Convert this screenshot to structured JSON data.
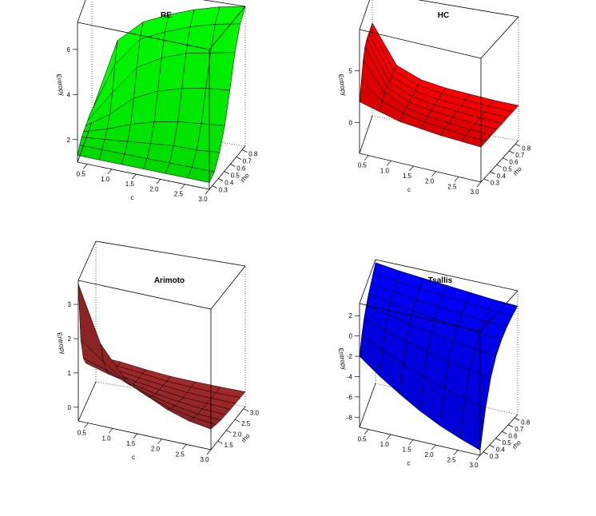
{
  "chart_data": [
    {
      "type": "surface",
      "title": "RE",
      "surface_color": "#00ff00",
      "xlabel": "c",
      "ylabel": "rho",
      "zlabel": "Entropy",
      "x_ticks": [
        "0.5",
        "1.0",
        "1.5",
        "2.0",
        "2.5",
        "3.0"
      ],
      "y_ticks": [
        "0.3",
        "0.4",
        "0.5",
        "0.6",
        "0.7",
        "0.8"
      ],
      "z_ticks": [
        "2",
        "4",
        "6"
      ],
      "xlim": [
        0.3,
        3.0
      ],
      "ylim": [
        0.25,
        0.85
      ],
      "zlim": [
        1,
        7.2
      ],
      "grid": [
        [
          1.3,
          1.5,
          1.6,
          1.6,
          1.6,
          1.6,
          1.6,
          1.5
        ],
        [
          1.3,
          1.5,
          1.7,
          1.9,
          2.3,
          3.0,
          4.0,
          4.8
        ],
        [
          1.3,
          1.5,
          1.8,
          2.3,
          3.2,
          4.3,
          5.3,
          5.8
        ],
        [
          1.3,
          1.5,
          1.9,
          2.6,
          3.7,
          4.9,
          5.8,
          6.3
        ],
        [
          1.3,
          1.5,
          2.0,
          2.8,
          4.0,
          5.3,
          6.2,
          6.7
        ],
        [
          1.3,
          1.5,
          2.0,
          2.9,
          4.2,
          5.5,
          6.5,
          7.0
        ],
        [
          1.3,
          1.5,
          2.1,
          3.0,
          4.3,
          5.7,
          6.7,
          7.2
        ]
      ]
    },
    {
      "type": "surface",
      "title": "HC",
      "surface_color": "#ff0000",
      "xlabel": "c",
      "ylabel": "rho",
      "zlabel": "Entropy",
      "x_ticks": [
        "0.5",
        "1.0",
        "1.5",
        "2.0",
        "2.5",
        "3.0"
      ],
      "y_ticks": [
        "0.3",
        "0.4",
        "0.5",
        "0.6",
        "0.7",
        "0.8"
      ],
      "z_ticks": [
        "0",
        "5"
      ],
      "xlim": [
        0.3,
        3.0
      ],
      "ylim": [
        0.25,
        0.85
      ],
      "zlim": [
        -3,
        9
      ],
      "grid": [
        [
          2.0,
          3.5,
          5.0,
          5.8,
          6.0,
          6.0,
          6.0,
          6.0
        ],
        [
          1.5,
          2.0,
          2.3,
          2.3,
          2.3,
          2.3,
          2.3,
          2.3
        ],
        [
          1.0,
          1.3,
          1.3,
          1.3,
          1.3,
          1.3,
          1.3,
          1.3
        ],
        [
          0.8,
          0.9,
          0.9,
          0.9,
          0.9,
          0.9,
          0.9,
          0.9
        ],
        [
          0.6,
          0.7,
          0.7,
          0.7,
          0.7,
          0.7,
          0.7,
          0.7
        ],
        [
          0.5,
          0.5,
          0.5,
          0.5,
          0.5,
          0.5,
          0.5,
          0.5
        ],
        [
          0.4,
          0.4,
          0.4,
          0.4,
          0.4,
          0.4,
          0.4,
          0.4
        ]
      ]
    },
    {
      "type": "surface",
      "title": "Arimoto",
      "surface_color": "#a52a2a",
      "xlabel": "c",
      "ylabel": "rho",
      "zlabel": "Entropy",
      "x_ticks": [
        "0.5",
        "1.0",
        "1.5",
        "2.0",
        "2.5",
        "3.0"
      ],
      "y_ticks": [
        "1.5",
        "2.0",
        "2.5",
        "3.0"
      ],
      "z_ticks": [
        "0",
        "1",
        "2",
        "3"
      ],
      "xlim": [
        0.3,
        3.0
      ],
      "ylim": [
        1.1,
        3.1
      ],
      "zlim": [
        -0.4,
        3.7
      ],
      "grid": [
        [
          3.6,
          1.8,
          1.1,
          0.8,
          0.6,
          0.5,
          0.4,
          0.35
        ],
        [
          2.0,
          1.3,
          0.9,
          0.6,
          0.5,
          0.4,
          0.35,
          0.3
        ],
        [
          1.2,
          0.85,
          0.6,
          0.45,
          0.35,
          0.3,
          0.25,
          0.2
        ],
        [
          0.8,
          0.55,
          0.4,
          0.3,
          0.25,
          0.2,
          0.15,
          0.12
        ],
        [
          0.5,
          0.35,
          0.25,
          0.2,
          0.15,
          0.12,
          0.1,
          0.08
        ],
        [
          0.3,
          0.22,
          0.15,
          0.12,
          0.1,
          0.08,
          0.06,
          0.05
        ],
        [
          0.2,
          0.15,
          0.1,
          0.08,
          0.06,
          0.05,
          0.04,
          0.03
        ]
      ]
    },
    {
      "type": "surface",
      "title": "Tsallis",
      "surface_color": "#0000ff",
      "xlabel": "c",
      "ylabel": "rho",
      "zlabel": "Entropy",
      "x_ticks": [
        "0.5",
        "1.0",
        "1.5",
        "2.0",
        "2.5",
        "3.0"
      ],
      "y_ticks": [
        "0.3",
        "0.4",
        "0.5",
        "0.6",
        "0.7",
        "0.8"
      ],
      "z_ticks": [
        "-8",
        "-6",
        "-4",
        "-2",
        "0",
        "2"
      ],
      "xlim": [
        0.3,
        3.0
      ],
      "ylim": [
        0.25,
        0.85
      ],
      "zlim": [
        -9,
        3.2
      ],
      "grid": [
        [
          -2.0,
          -0.5,
          0.5,
          1.2,
          1.7,
          2.1,
          2.5,
          2.9
        ],
        [
          -3.5,
          -1.5,
          -0.2,
          0.7,
          1.3,
          1.8,
          2.2,
          2.6
        ],
        [
          -4.8,
          -2.4,
          -0.8,
          0.3,
          1.0,
          1.5,
          2.0,
          2.4
        ],
        [
          -6.0,
          -3.2,
          -1.3,
          -0.1,
          0.7,
          1.3,
          1.8,
          2.2
        ],
        [
          -7.0,
          -3.9,
          -1.8,
          -0.4,
          0.5,
          1.1,
          1.6,
          2.0
        ],
        [
          -7.8,
          -4.5,
          -2.2,
          -0.7,
          0.3,
          0.9,
          1.4,
          1.8
        ],
        [
          -8.5,
          -5.0,
          -2.5,
          -0.9,
          0.1,
          0.8,
          1.3,
          1.7
        ]
      ]
    }
  ]
}
